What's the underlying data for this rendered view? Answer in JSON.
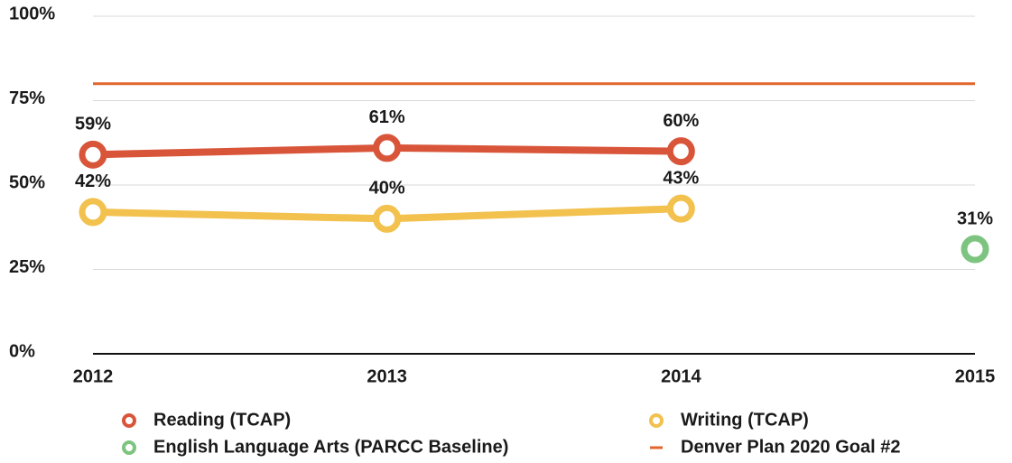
{
  "chart_data": {
    "type": "line",
    "categories": [
      "2012",
      "2013",
      "2014",
      "2015"
    ],
    "series": [
      {
        "name": "Reading (TCAP)",
        "color": "#d9553a",
        "values": [
          59,
          61,
          60,
          null
        ],
        "value_labels": [
          "59%",
          "61%",
          "60%",
          null
        ],
        "markers": true
      },
      {
        "name": "Writing (TCAP)",
        "color": "#f2c14e",
        "values": [
          42,
          40,
          43,
          null
        ],
        "value_labels": [
          "42%",
          "40%",
          "43%",
          null
        ],
        "markers": true
      },
      {
        "name": "English Language Arts (PARCC Baseline)",
        "color": "#7cc47f",
        "values": [
          null,
          null,
          null,
          31
        ],
        "value_labels": [
          null,
          null,
          null,
          "31%"
        ],
        "markers": true
      },
      {
        "name": "Denver Plan 2020 Goal #2",
        "color": "#e0662c",
        "values": [
          80,
          80,
          80,
          80
        ],
        "markers": false
      }
    ],
    "ylim": [
      0,
      100
    ],
    "yticks": [
      {
        "value": 0,
        "label": "0%"
      },
      {
        "value": 25,
        "label": "25%"
      },
      {
        "value": 50,
        "label": "50%"
      },
      {
        "value": 75,
        "label": "75%"
      },
      {
        "value": 100,
        "label": "100%"
      }
    ],
    "grid": true,
    "legend": "bottom"
  }
}
